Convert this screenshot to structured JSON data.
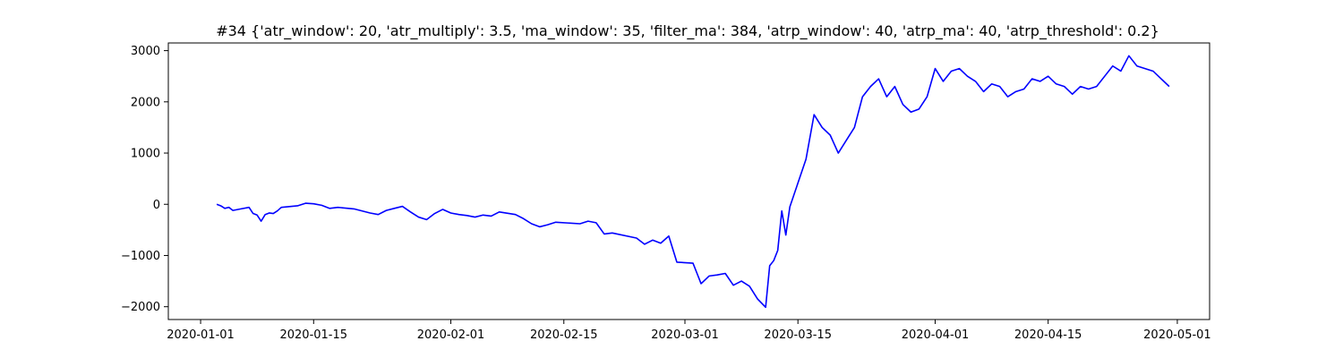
{
  "chart_data": {
    "type": "line",
    "title": "#34 {'atr_window': 20, 'atr_multiply': 3.5, 'ma_window': 35, 'filter_ma': 384, 'atrp_window': 40, 'atrp_ma': 40, 'atrp_threshold': 0.2}",
    "xlabel": "",
    "ylabel": "",
    "grid": false,
    "legend": "none",
    "xlim": [
      "2019-12-28",
      "2020-05-05"
    ],
    "ylim": [
      -2250,
      3150
    ],
    "x_ticks": [
      "2020-01-01",
      "2020-01-15",
      "2020-02-01",
      "2020-02-15",
      "2020-03-01",
      "2020-03-15",
      "2020-04-01",
      "2020-04-15",
      "2020-05-01"
    ],
    "y_ticks": [
      -2000,
      -1000,
      0,
      1000,
      2000,
      3000
    ],
    "y_tick_labels": [
      "−2000",
      "−1000",
      "0",
      "1000",
      "2000",
      "3000"
    ],
    "line_color": "#0000ff",
    "series": [
      {
        "x": [
          "2020-01-03",
          "2020-01-03T12",
          "2020-01-04",
          "2020-01-04T12",
          "2020-01-05",
          "2020-01-06",
          "2020-01-07",
          "2020-01-07T12",
          "2020-01-08",
          "2020-01-08T12",
          "2020-01-09",
          "2020-01-09T12",
          "2020-01-10",
          "2020-01-10T12",
          "2020-01-11",
          "2020-01-13",
          "2020-01-14",
          "2020-01-15",
          "2020-01-16",
          "2020-01-17",
          "2020-01-18",
          "2020-01-20",
          "2020-01-22",
          "2020-01-23",
          "2020-01-24",
          "2020-01-25",
          "2020-01-26",
          "2020-01-27",
          "2020-01-28",
          "2020-01-29",
          "2020-01-30",
          "2020-01-31",
          "2020-02-01",
          "2020-02-02",
          "2020-02-03",
          "2020-02-04",
          "2020-02-05",
          "2020-02-06",
          "2020-02-07",
          "2020-02-09",
          "2020-02-10",
          "2020-02-11",
          "2020-02-12",
          "2020-02-13",
          "2020-02-14",
          "2020-02-17",
          "2020-02-18",
          "2020-02-19",
          "2020-02-20",
          "2020-02-21",
          "2020-02-24",
          "2020-02-25",
          "2020-02-26",
          "2020-02-27",
          "2020-02-28",
          "2020-02-29",
          "2020-03-02",
          "2020-03-02T12",
          "2020-03-03",
          "2020-03-04",
          "2020-03-05",
          "2020-03-06",
          "2020-03-07",
          "2020-03-08",
          "2020-03-09",
          "2020-03-10",
          "2020-03-11",
          "2020-03-11T12",
          "2020-03-12",
          "2020-03-12T12",
          "2020-03-13",
          "2020-03-13T12",
          "2020-03-14",
          "2020-03-16",
          "2020-03-17",
          "2020-03-18",
          "2020-03-19",
          "2020-03-20",
          "2020-03-21",
          "2020-03-22",
          "2020-03-23",
          "2020-03-24",
          "2020-03-25",
          "2020-03-26",
          "2020-03-27",
          "2020-03-28",
          "2020-03-29",
          "2020-03-30",
          "2020-03-31",
          "2020-04-01",
          "2020-04-02",
          "2020-04-03",
          "2020-04-04",
          "2020-04-05",
          "2020-04-06",
          "2020-04-07",
          "2020-04-08",
          "2020-04-09",
          "2020-04-10",
          "2020-04-11",
          "2020-04-12",
          "2020-04-13",
          "2020-04-14",
          "2020-04-15",
          "2020-04-16",
          "2020-04-17",
          "2020-04-18",
          "2020-04-19",
          "2020-04-20",
          "2020-04-21",
          "2020-04-22",
          "2020-04-23",
          "2020-04-24",
          "2020-04-25",
          "2020-04-26",
          "2020-04-27",
          "2020-04-28",
          "2020-04-29",
          "2020-04-30"
        ],
        "values": [
          0,
          -30,
          -80,
          -60,
          -120,
          -90,
          -60,
          -180,
          -210,
          -330,
          -200,
          -170,
          -180,
          -130,
          -60,
          -30,
          20,
          10,
          -20,
          -80,
          -60,
          -90,
          -170,
          -200,
          -120,
          -80,
          -40,
          -150,
          -250,
          -300,
          -180,
          -100,
          -170,
          -200,
          -220,
          -250,
          -210,
          -230,
          -150,
          -200,
          -280,
          -380,
          -440,
          -400,
          -350,
          -380,
          -330,
          -360,
          -580,
          -560,
          -660,
          -780,
          -700,
          -760,
          -620,
          -1130,
          -1150,
          -1350,
          -1550,
          -1400,
          -1380,
          -1350,
          -1580,
          -1500,
          -1600,
          -1850,
          -2010,
          -1200,
          -1100,
          -900,
          -130,
          -600,
          -50,
          880,
          1750,
          1500,
          1350,
          1000,
          1250,
          1500,
          2100,
          2300,
          2450,
          2100,
          2300,
          1950,
          1800,
          1860,
          2100,
          2650,
          2400,
          2600,
          2650,
          2500,
          2400,
          2200,
          2350,
          2300,
          2100,
          2200,
          2250,
          2450,
          2400,
          2500,
          2350,
          2300,
          2150,
          2300,
          2250,
          2300,
          2500,
          2700,
          2600,
          2900,
          2700,
          2650,
          2600,
          2450,
          2300
        ]
      }
    ]
  }
}
